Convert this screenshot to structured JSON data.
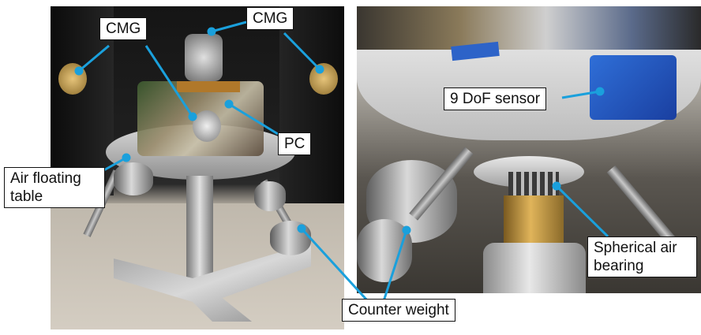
{
  "figure": {
    "left_photo_description_name": "floating-table-photo",
    "right_photo_description_name": "air-bearing-closeup-photo",
    "labels": {
      "cmg_left": "CMG",
      "cmg_top": "CMG",
      "pc": "PC",
      "air_floating_table_line1": "Air floating",
      "air_floating_table_line2": "table",
      "dof_sensor": "9 DoF sensor",
      "spherical_air_bearing_line1": "Spherical air",
      "spherical_air_bearing_line2": "bearing",
      "counter_weight": "Counter weight"
    },
    "colors": {
      "leader_line": "#1aa0dc",
      "label_border": "#111111",
      "label_background": "#ffffff"
    }
  }
}
